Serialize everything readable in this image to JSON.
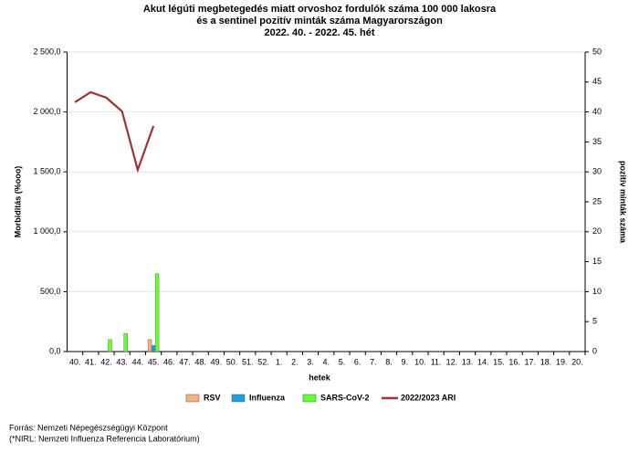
{
  "chart_data": {
    "type": "bar+line",
    "title": [
      "Akut légúti megbetegedés miatt orvoshoz fordulók száma 100 000 lakosra",
      "és a sentinel pozitív minták száma Magyarországon",
      "2022. 40. - 2022. 45. hét"
    ],
    "x_label": "hetek",
    "y_label": "Morbiditás (%ooo)",
    "y2_label": "pozitív minták száma",
    "categories": [
      "40.",
      "41.",
      "42.",
      "43.",
      "44.",
      "45.",
      "46.",
      "47.",
      "48.",
      "49.",
      "50.",
      "51.",
      "52.",
      "1.",
      "2.",
      "3.",
      "4.",
      "5.",
      "6.",
      "7.",
      "8.",
      "9.",
      "10.",
      "11.",
      "12.",
      "13.",
      "14.",
      "15.",
      "16.",
      "17.",
      "18.",
      "19.",
      "20."
    ],
    "series": [
      {
        "name": "RSV",
        "type": "bar",
        "axis": "y2",
        "color": "#f4b183",
        "values": [
          0,
          0,
          0,
          0,
          0,
          2,
          null,
          null,
          null,
          null,
          null,
          null,
          null,
          null,
          null,
          null,
          null,
          null,
          null,
          null,
          null,
          null,
          null,
          null,
          null,
          null,
          null,
          null,
          null,
          null,
          null,
          null,
          null
        ]
      },
      {
        "name": "Influenza",
        "type": "bar",
        "axis": "y2",
        "color": "#1ea0e0",
        "values": [
          0,
          0,
          0,
          0,
          0,
          1,
          null,
          null,
          null,
          null,
          null,
          null,
          null,
          null,
          null,
          null,
          null,
          null,
          null,
          null,
          null,
          null,
          null,
          null,
          null,
          null,
          null,
          null,
          null,
          null,
          null,
          null,
          null
        ]
      },
      {
        "name": "SARS-CoV-2",
        "type": "bar",
        "axis": "y2",
        "color": "#66ff33",
        "values": [
          0,
          0,
          2,
          3,
          0,
          13,
          null,
          null,
          null,
          null,
          null,
          null,
          null,
          null,
          null,
          null,
          null,
          null,
          null,
          null,
          null,
          null,
          null,
          null,
          null,
          null,
          null,
          null,
          null,
          null,
          null,
          null,
          null
        ]
      },
      {
        "name": "2022/2023 ARI",
        "type": "line",
        "axis": "y",
        "color": "#9b3535",
        "values": [
          2081,
          2165,
          2119,
          2005,
          1517,
          1883,
          null,
          null,
          null,
          null,
          null,
          null,
          null,
          null,
          null,
          null,
          null,
          null,
          null,
          null,
          null,
          null,
          null,
          null,
          null,
          null,
          null,
          null,
          null,
          null,
          null,
          null,
          null
        ]
      }
    ],
    "ylim": [
      0,
      2500
    ],
    "yticks": [
      {
        "value": 0,
        "label": "0,0"
      },
      {
        "value": 500,
        "label": "500,0"
      },
      {
        "value": 1000,
        "label": "1 000,0"
      },
      {
        "value": 1500,
        "label": "1 500,0"
      },
      {
        "value": 2000,
        "label": "2 000,0"
      },
      {
        "value": 2500,
        "label": "2 500,0"
      }
    ],
    "y2lim": [
      0,
      50
    ],
    "y2ticks": [
      0,
      5,
      10,
      15,
      20,
      25,
      30,
      35,
      40,
      45,
      50
    ],
    "grid": true,
    "legend": "bottom"
  },
  "footer": [
    "Forrás: Nemzeti Népegészségügyi Központ",
    "(*NIRL: Nemzeti Influenza Referencia Laboratórium)"
  ]
}
